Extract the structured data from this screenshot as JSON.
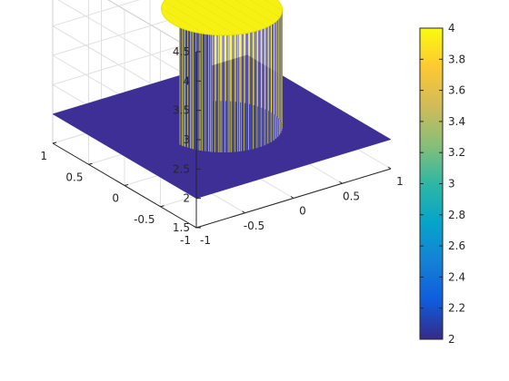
{
  "chart_data": {
    "type": "surface",
    "title": "",
    "xlabel": "",
    "ylabel": "",
    "zlabel": "",
    "xlim": [
      -1,
      1
    ],
    "ylim": [
      -1,
      1
    ],
    "zlim": [
      1.5,
      4.5
    ],
    "x_ticks": [
      "-1",
      "-0.5",
      "0",
      "0.5",
      "1"
    ],
    "y_ticks": [
      "-1",
      "-0.5",
      "0",
      "0.5",
      "1"
    ],
    "z_ticks": [
      "1.5",
      "2",
      "2.5",
      "3",
      "3.5",
      "4",
      "4.5"
    ],
    "grid": true,
    "colormap": "parula",
    "surface": {
      "base_value": 2,
      "cylinder_value": 4,
      "cylinder_center": [
        0,
        0
      ],
      "cylinder_radius": 0.5
    },
    "colorbar": {
      "range": [
        2,
        4
      ],
      "tick_labels": [
        "2",
        "2.2",
        "2.4",
        "2.6",
        "2.8",
        "3",
        "3.2",
        "3.4",
        "3.6",
        "3.8",
        "4"
      ],
      "colors": [
        "#352a87",
        "#0f5cdd",
        "#1481d6",
        "#06a4ca",
        "#2eb7a4",
        "#87bf77",
        "#d1bb59",
        "#fec832",
        "#f9fb0e"
      ]
    },
    "colors": {
      "base": "#3e2f96",
      "top": "#f6f112",
      "wall_dark": "#3b3b9c",
      "axis": "#262626",
      "grid": "#e0e0e0"
    }
  }
}
